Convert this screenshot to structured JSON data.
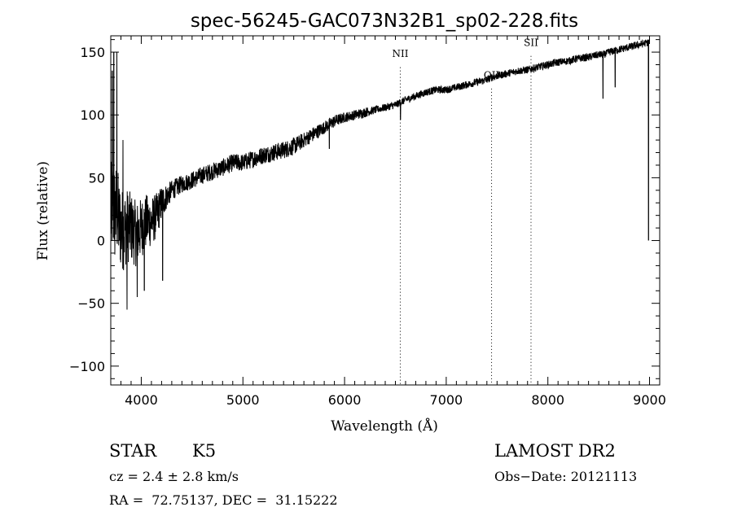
{
  "chart_data": {
    "type": "line",
    "title": "spec-56245-GAC073N32B1_sp02-228.fits",
    "xlabel": "Wavelength (Å)",
    "ylabel": "Flux (relative)",
    "xlim": [
      3700,
      9100
    ],
    "ylim": [
      -115,
      163
    ],
    "x_ticks": [
      4000,
      5000,
      6000,
      7000,
      8000,
      9000
    ],
    "y_ticks": [
      -100,
      -50,
      0,
      50,
      100,
      150
    ],
    "x_tick_labels": [
      "4000",
      "5000",
      "6000",
      "7000",
      "8000",
      "9000"
    ],
    "y_tick_labels": [
      "−100",
      "−50",
      "0",
      "50",
      "100",
      "150"
    ],
    "grid": false,
    "line_color": "#000000",
    "spectrum": {
      "x": [
        3700,
        3720,
        3740,
        3760,
        3780,
        3800,
        3830,
        3860,
        3900,
        3950,
        4000,
        4050,
        4100,
        4150,
        4200,
        4250,
        4300,
        4400,
        4500,
        4600,
        4700,
        4800,
        4900,
        5000,
        5100,
        5200,
        5300,
        5400,
        5500,
        5600,
        5700,
        5800,
        5900,
        6000,
        6100,
        6200,
        6300,
        6400,
        6500,
        6550,
        6600,
        6700,
        6800,
        6900,
        7000,
        7100,
        7200,
        7300,
        7400,
        7450,
        7500,
        7600,
        7700,
        7800,
        7850,
        7900,
        8000,
        8100,
        8200,
        8300,
        8400,
        8500,
        8550,
        8600,
        8650,
        8700,
        8800,
        8900,
        8950,
        9000
      ],
      "y": [
        20,
        30,
        20,
        25,
        15,
        10,
        8,
        12,
        10,
        5,
        10,
        15,
        15,
        20,
        30,
        35,
        40,
        45,
        48,
        52,
        55,
        58,
        62,
        62,
        65,
        68,
        70,
        72,
        75,
        80,
        85,
        90,
        95,
        98,
        100,
        102,
        104,
        106,
        108,
        110,
        112,
        115,
        118,
        120,
        120,
        122,
        124,
        126,
        128,
        130,
        131,
        133,
        135,
        136,
        137,
        138,
        140,
        142,
        143,
        145,
        146,
        148,
        148,
        150,
        151,
        152,
        154,
        156,
        157,
        158
      ],
      "noise": [
        40,
        40,
        40,
        38,
        36,
        34,
        32,
        30,
        28,
        26,
        24,
        22,
        20,
        18,
        14,
        10,
        8,
        7,
        7,
        7,
        7,
        7,
        7,
        7,
        7,
        7,
        7,
        7,
        7,
        6,
        6,
        5,
        5,
        4,
        4,
        4,
        3,
        3,
        3,
        3,
        3,
        3,
        3,
        3,
        3,
        3,
        3,
        3,
        3,
        3,
        3,
        3,
        3,
        3,
        3,
        3,
        3,
        3,
        3,
        3,
        3,
        3,
        3,
        3,
        3,
        3,
        3,
        3,
        3,
        3
      ],
      "spikes": [
        {
          "x": 3715,
          "y": 135
        },
        {
          "x": 3730,
          "y": 150
        },
        {
          "x": 3760,
          "y": 150
        },
        {
          "x": 3820,
          "y": 80
        },
        {
          "x": 3860,
          "y": -55
        },
        {
          "x": 3960,
          "y": -45
        },
        {
          "x": 4030,
          "y": -40
        },
        {
          "x": 4210,
          "y": -32
        },
        {
          "x": 5850,
          "y": 73
        },
        {
          "x": 6550,
          "y": 96
        },
        {
          "x": 8542,
          "y": 113
        },
        {
          "x": 8662,
          "y": 122
        },
        {
          "x": 8990,
          "y": 0
        }
      ]
    },
    "lines": [
      {
        "label": "NII",
        "x": 6548,
        "label_y": 146
      },
      {
        "label": "OII",
        "x": 7446,
        "label_y": 129
      },
      {
        "label": "SII",
        "x": 7834,
        "label_y": 155
      }
    ]
  },
  "info": {
    "object_class": "STAR",
    "subclass": "K5",
    "survey": "LAMOST DR2",
    "cz": "cz = 2.4 ± 2.8 km/s",
    "obs_date": "Obs−Date: 20121113",
    "coords": "RA =  72.75137, DEC =  31.15222"
  }
}
